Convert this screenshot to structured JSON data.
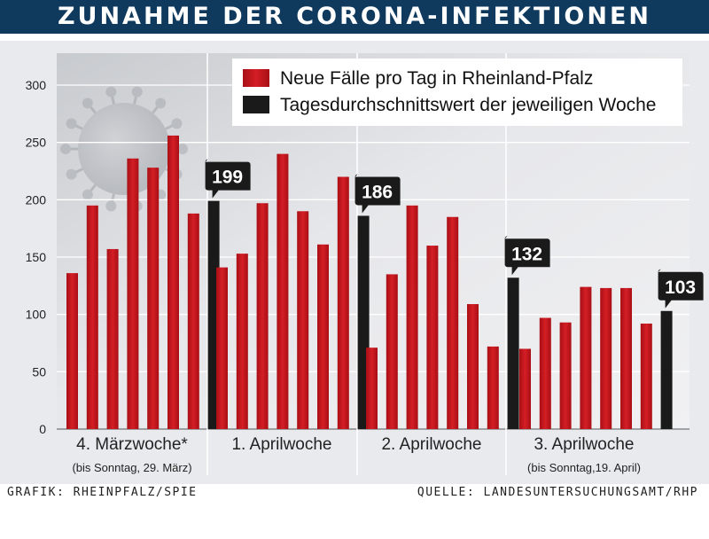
{
  "header": {
    "title": "ZUNAHME DER CORONA-INFEKTIONEN"
  },
  "footer": {
    "left": "GRAFIK: RHEINPFALZ/SPIE",
    "right": "QUELLE: LANDESUNTERSUCHUNGSAMT/RHP"
  },
  "colors": {
    "daily": "#c4161c",
    "average": "#1a1a1a",
    "header_bg": "#0f3a5e"
  },
  "chart_data": {
    "type": "bar",
    "title": "ZUNAHME DER CORONA-INFEKTIONEN",
    "ylim": [
      0,
      300
    ],
    "y_ticks": [
      0,
      50,
      100,
      150,
      200,
      250,
      300
    ],
    "grid": true,
    "legend_position": "top-right",
    "legend": [
      {
        "name": "Neue Fälle pro Tag in Rheinland-Pfalz",
        "color": "#c4161c"
      },
      {
        "name": "Tagesdurchschnittswert der jeweiligen Woche",
        "color": "#1a1a1a"
      }
    ],
    "groups": [
      {
        "label": "4. Märzwoche*",
        "sublabel": "(bis Sonntag, 29. März)",
        "daily": [
          136,
          195,
          157,
          236,
          228,
          256,
          188
        ],
        "average": 199
      },
      {
        "label": "1. Aprilwoche",
        "sublabel": "",
        "daily": [
          141,
          153,
          197,
          240,
          190,
          161,
          220
        ],
        "average": 186
      },
      {
        "label": "2. Aprilwoche",
        "sublabel": "",
        "daily": [
          71,
          135,
          195,
          160,
          185,
          109,
          72
        ],
        "average": 132
      },
      {
        "label": "3. Aprilwoche",
        "sublabel": "(bis Sonntag,19. April)",
        "daily": [
          70,
          97,
          93,
          124,
          123,
          123,
          92
        ],
        "average": 103
      }
    ]
  }
}
